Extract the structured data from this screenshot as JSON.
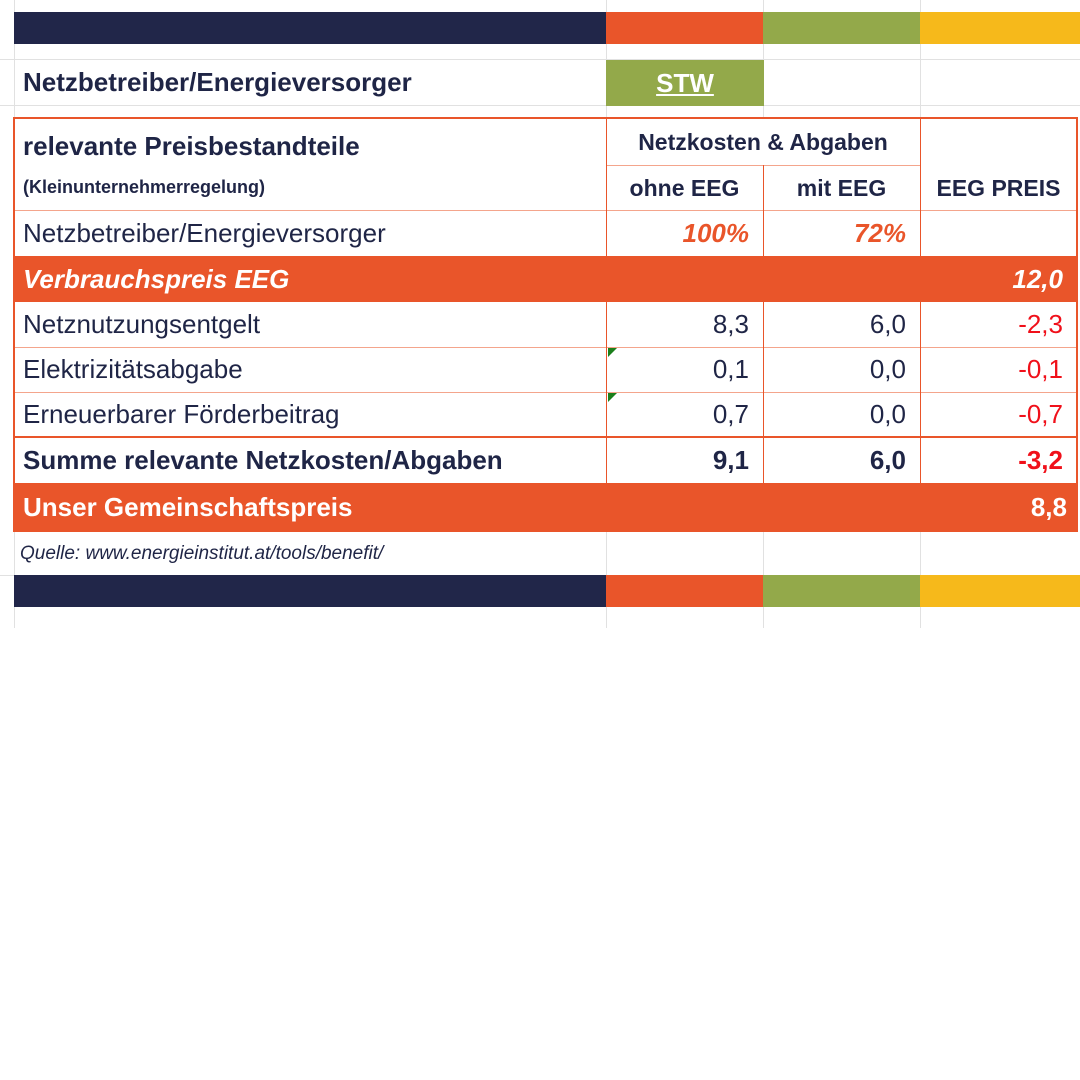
{
  "colors": {
    "navy": "#212649",
    "orange": "#e9552a",
    "green": "#93a94a",
    "yellow": "#f6b91b",
    "red": "#f0101a"
  },
  "selector": {
    "label": "Netzbetreiber/Energieversorger",
    "value": "STW"
  },
  "table": {
    "title": "relevante Preisbestandteile",
    "subtitle": "(Kleinunternehmerregelung)",
    "group_header": "Netzkosten & Abgaben",
    "col_ohne": "ohne EEG",
    "col_mit": "mit EEG",
    "col_eeg": "EEG PREIS",
    "share_row": {
      "label": "Netzbetreiber/Energieversorger",
      "ohne": "100%",
      "mit": "72%"
    },
    "verbrauch": {
      "label": "Verbrauchspreis EEG",
      "value": "12,0"
    },
    "rows": [
      {
        "label": "Netznutzungsentgelt",
        "ohne": "8,3",
        "mit": "6,0",
        "eeg": "-2,3"
      },
      {
        "label": "Elektrizitätsabgabe",
        "ohne": "0,1",
        "mit": "0,0",
        "eeg": "-0,1"
      },
      {
        "label": "Erneuerbarer Förderbeitrag",
        "ohne": "0,7",
        "mit": "0,0",
        "eeg": "-0,7"
      }
    ],
    "sum": {
      "label": "Summe relevante Netzkosten/Abgaben",
      "ohne": "9,1",
      "mit": "6,0",
      "eeg": "-3,2"
    },
    "community": {
      "label": "Unser Gemeinschaftspreis",
      "value": "8,8"
    }
  },
  "source": "Quelle: www.energieinstitut.at/tools/benefit/"
}
